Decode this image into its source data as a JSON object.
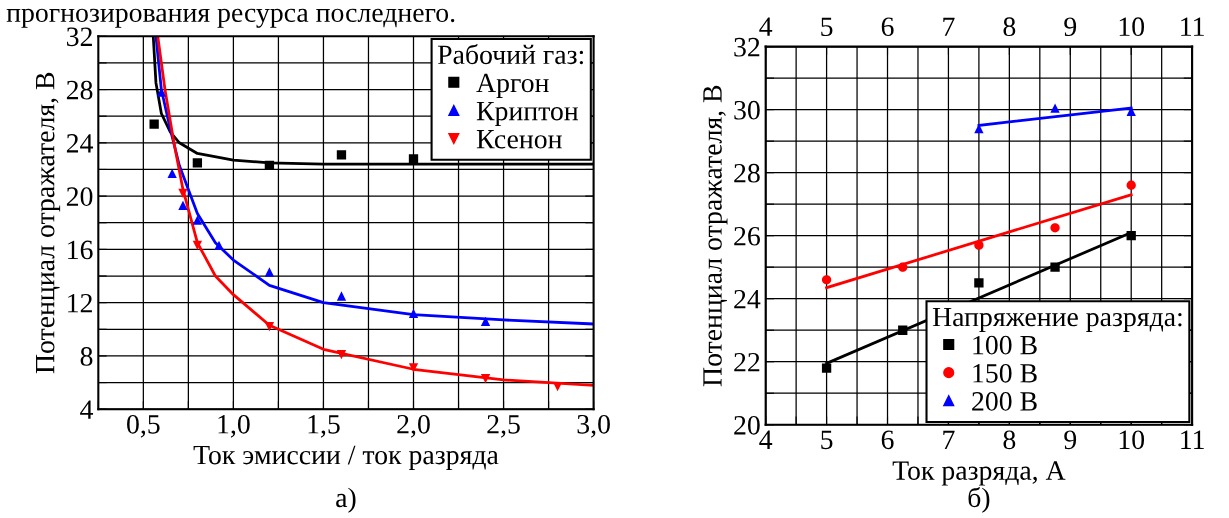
{
  "chart_data": [
    {
      "type": "scatter",
      "xlabel": "Ток эмиссии / ток разряда",
      "ylabel": "Потенциал отражателя, В",
      "legend_title": "Рабочий газ:",
      "legend": "top right",
      "grid": true,
      "annotations": [
        "а)",
        "прогнозирования ресурса последнего."
      ],
      "xlim": [
        0.25,
        3.0
      ],
      "ylim": [
        4,
        32
      ],
      "xticks": [
        {
          "value": 0.25,
          "label": null
        },
        {
          "value": 0.5,
          "label": "0,5"
        },
        {
          "value": 0.75,
          "label": null
        },
        {
          "value": 1.0,
          "label": "1,0"
        },
        {
          "value": 1.25,
          "label": null
        },
        {
          "value": 1.5,
          "label": "1,5"
        },
        {
          "value": 1.75,
          "label": null
        },
        {
          "value": 2.0,
          "label": "2,0"
        },
        {
          "value": 2.25,
          "label": null
        },
        {
          "value": 2.5,
          "label": "2,5"
        },
        {
          "value": 2.75,
          "label": null
        },
        {
          "value": 3.0,
          "label": "3,0"
        }
      ],
      "yticks": [
        4,
        {
          "value": 6,
          "label": null
        },
        8,
        {
          "value": 10,
          "label": null
        },
        12,
        {
          "value": 14,
          "label": null
        },
        16,
        {
          "value": 18,
          "label": null
        },
        20,
        {
          "value": 22,
          "label": null
        },
        24,
        {
          "value": 26,
          "label": null
        },
        28,
        {
          "value": 30,
          "label": null
        },
        32
      ],
      "series": [
        {
          "name": "Аргон",
          "type": "scatter",
          "marker": "square",
          "color": "#000000",
          "x": [
            0.56,
            0.8,
            1.2,
            1.6,
            2.0
          ],
          "values": [
            25.4,
            22.5,
            22.3,
            23.1,
            22.8
          ]
        },
        {
          "name": "Криптон",
          "type": "scatter",
          "marker": "triangle",
          "color": "#0000ff",
          "x": [
            0.6,
            0.66,
            0.72,
            0.8,
            0.92,
            1.2,
            1.6,
            2.0,
            2.4
          ],
          "values": [
            27.8,
            21.7,
            19.3,
            18.2,
            16.3,
            14.3,
            12.5,
            11.2,
            10.6
          ]
        },
        {
          "name": "Ксенон",
          "type": "scatter",
          "marker": "triangle_down",
          "color": "#ff0000",
          "x": [
            0.72,
            0.8,
            1.2,
            1.6,
            2.0,
            2.4,
            2.8
          ],
          "values": [
            20.2,
            16.3,
            10.2,
            8.1,
            7.1,
            6.3,
            5.7
          ]
        },
        {
          "type": "line",
          "color": "#000000",
          "x": [
            0.555,
            0.57,
            0.6,
            0.65,
            0.7,
            0.8,
            1.0,
            1.2,
            1.5,
            2.0,
            3.0
          ],
          "values": [
            32,
            28.5,
            26.2,
            24.8,
            24.0,
            23.2,
            22.7,
            22.5,
            22.4,
            22.4,
            22.4
          ]
        },
        {
          "type": "line",
          "color": "#0000ff",
          "x": [
            0.57,
            0.6,
            0.65,
            0.7,
            0.8,
            0.9,
            1.0,
            1.2,
            1.5,
            2.0,
            2.5,
            3.0
          ],
          "values": [
            32,
            28,
            25,
            22.3,
            18.7,
            16.5,
            15.2,
            13.3,
            12.0,
            11.1,
            10.7,
            10.4
          ]
        },
        {
          "type": "line",
          "color": "#ff0000",
          "x": [
            0.58,
            0.62,
            0.67,
            0.72,
            0.8,
            0.9,
            1.0,
            1.2,
            1.5,
            2.0,
            2.5,
            3.0
          ],
          "values": [
            32,
            28,
            24,
            20.5,
            16.5,
            14.0,
            12.6,
            10.3,
            8.5,
            7.0,
            6.2,
            5.8
          ]
        }
      ]
    },
    {
      "type": "scatter",
      "xlabel": "Ток разряда, А",
      "ylabel": "Потенциал отражателя, В",
      "legend_title": "Напряжение разряда:",
      "legend": "bottom right",
      "grid": true,
      "annotations": [
        "б)"
      ],
      "xlim": [
        4,
        11
      ],
      "ylim": [
        20,
        32
      ],
      "x2lim": [
        4,
        11
      ],
      "xticks": [
        4,
        {
          "value": 4.5,
          "label": null
        },
        5,
        {
          "value": 5.5,
          "label": null
        },
        6,
        {
          "value": 6.5,
          "label": null
        },
        7,
        {
          "value": 7.5,
          "label": null
        },
        8,
        {
          "value": 8.5,
          "label": null
        },
        9,
        {
          "value": 9.5,
          "label": null
        },
        10,
        {
          "value": 10.5,
          "label": null
        },
        11
      ],
      "x2ticks": [
        4,
        5,
        6,
        7,
        8,
        9,
        10,
        11
      ],
      "yticks": [
        20,
        {
          "value": 21,
          "label": null
        },
        22,
        {
          "value": 23,
          "label": null
        },
        24,
        {
          "value": 25,
          "label": null
        },
        26,
        {
          "value": 27,
          "label": null
        },
        28,
        {
          "value": 29,
          "label": null
        },
        30,
        {
          "value": 31,
          "label": null
        },
        32
      ],
      "series": [
        {
          "name": "100 В",
          "type": "scatter",
          "marker": "square",
          "color": "#000000",
          "x": [
            5,
            6.25,
            7.5,
            8.75,
            10
          ],
          "values": [
            21.8,
            23.0,
            24.5,
            25.0,
            26.0
          ]
        },
        {
          "name": "150 В",
          "type": "scatter",
          "marker": "circle",
          "color": "#ff0000",
          "x": [
            5,
            6.25,
            7.5,
            8.75,
            10
          ],
          "values": [
            24.6,
            25.0,
            25.7,
            26.25,
            27.6
          ]
        },
        {
          "name": "200 В",
          "type": "scatter",
          "marker": "triangle",
          "color": "#0000ff",
          "x": [
            7.5,
            8.75,
            10
          ],
          "values": [
            29.4,
            30.05,
            29.95
          ]
        },
        {
          "type": "line",
          "color": "#000000",
          "x": [
            5,
            10
          ],
          "values": [
            21.95,
            26.1
          ]
        },
        {
          "type": "line",
          "color": "#ff0000",
          "x": [
            5,
            10
          ],
          "values": [
            24.35,
            27.3
          ]
        },
        {
          "type": "line",
          "color": "#0000ff",
          "x": [
            7.5,
            10
          ],
          "values": [
            29.5,
            30.05
          ]
        }
      ]
    }
  ]
}
